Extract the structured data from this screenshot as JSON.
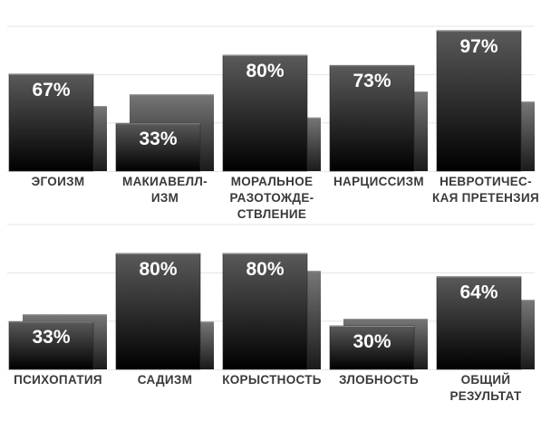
{
  "chart_data": [
    {
      "type": "bar",
      "categories": [
        [
          "ЭГОИЗМ"
        ],
        [
          "МАКИАВЕЛЛ-",
          "ИЗМ"
        ],
        [
          "МОРАЛЬНОЕ",
          "РАЗОТОЖДЕ-",
          "СТВЛЕНИЕ"
        ],
        [
          "НАРЦИССИЗМ"
        ],
        [
          "НЕВРОТИЧЕС-",
          "КАЯ ПРЕТЕНЗИЯ"
        ]
      ],
      "series": [
        {
          "values": [
            67,
            33,
            80,
            73,
            97
          ],
          "labels": [
            "67%",
            "33%",
            "80%",
            "73%",
            "97%"
          ]
        },
        {
          "values": [
            45,
            53,
            37,
            55,
            48
          ]
        }
      ],
      "ylim": [
        0,
        100
      ],
      "grid": true
    },
    {
      "type": "bar",
      "categories": [
        [
          "ПСИХОПАТИЯ"
        ],
        [
          "САДИЗМ"
        ],
        [
          "КОРЫСТНОСТЬ"
        ],
        [
          "ЗЛОБНОСТЬ"
        ],
        [
          "ОБЩИЙ",
          "РЕЗУЛЬТАТ"
        ]
      ],
      "series": [
        {
          "values": [
            33,
            80,
            80,
            30,
            64
          ],
          "labels": [
            "33%",
            "80%",
            "80%",
            "30%",
            "64%"
          ]
        },
        {
          "values": [
            38,
            33,
            68,
            35,
            48
          ]
        }
      ],
      "ylim": [
        0,
        100
      ],
      "grid": true
    }
  ],
  "colors": {
    "front_top": "#5a5a5a",
    "front_bottom": "#000000",
    "back_top": "#777777",
    "back_bottom": "#1a1a1a",
    "grid": "#e6e6e6",
    "label": "#3a3a3a"
  }
}
